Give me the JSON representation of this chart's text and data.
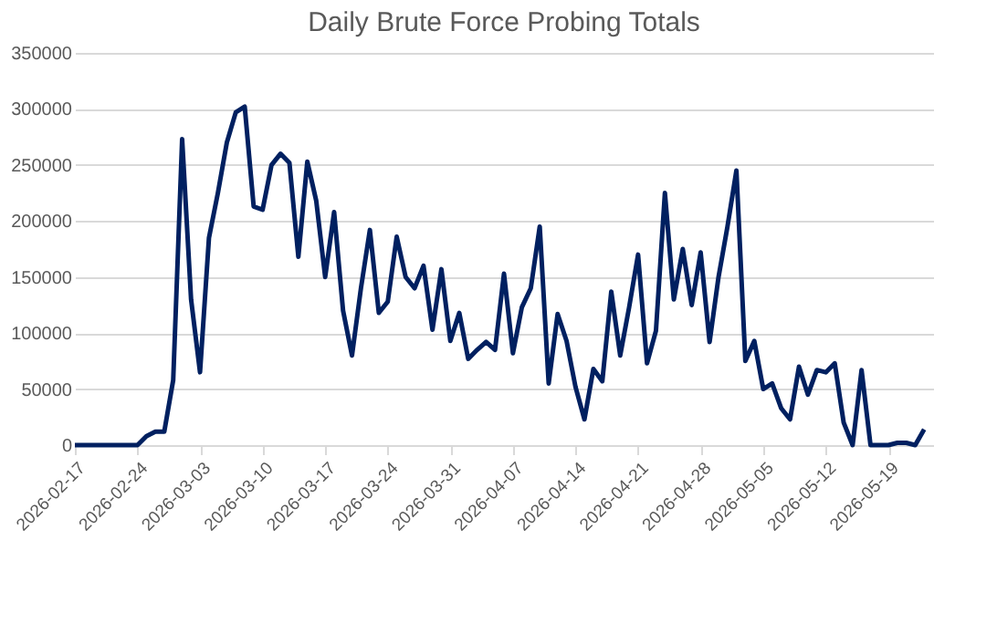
{
  "chart_data": {
    "type": "line",
    "title": "Daily Brute Force Probing Totals",
    "x": [
      "2026-02-17",
      "2026-02-18",
      "2026-02-19",
      "2026-02-20",
      "2026-02-21",
      "2026-02-22",
      "2026-02-23",
      "2026-02-24",
      "2026-02-25",
      "2026-02-26",
      "2026-02-27",
      "2026-02-28",
      "2026-03-01",
      "2026-03-02",
      "2026-03-03",
      "2026-03-04",
      "2026-03-05",
      "2026-03-06",
      "2026-03-07",
      "2026-03-08",
      "2026-03-09",
      "2026-03-10",
      "2026-03-11",
      "2026-03-12",
      "2026-03-13",
      "2026-03-14",
      "2026-03-15",
      "2026-03-16",
      "2026-03-17",
      "2026-03-18",
      "2026-03-19",
      "2026-03-20",
      "2026-03-21",
      "2026-03-22",
      "2026-03-23",
      "2026-03-24",
      "2026-03-25",
      "2026-03-26",
      "2026-03-27",
      "2026-03-28",
      "2026-03-29",
      "2026-03-30",
      "2026-03-31",
      "2026-04-01",
      "2026-04-02",
      "2026-04-03",
      "2026-04-04",
      "2026-04-05",
      "2026-04-06",
      "2026-04-07",
      "2026-04-08",
      "2026-04-09",
      "2026-04-10",
      "2026-04-11",
      "2026-04-12",
      "2026-04-13",
      "2026-04-14",
      "2026-04-15",
      "2026-04-16",
      "2026-04-17",
      "2026-04-18",
      "2026-04-19",
      "2026-04-20",
      "2026-04-21",
      "2026-04-22",
      "2026-04-23",
      "2026-04-24",
      "2026-04-25",
      "2026-04-26",
      "2026-04-27",
      "2026-04-28",
      "2026-04-29",
      "2026-04-30",
      "2026-05-01",
      "2026-05-02",
      "2026-05-03",
      "2026-05-04",
      "2026-05-05",
      "2026-05-06",
      "2026-05-07",
      "2026-05-08",
      "2026-05-09",
      "2026-05-10",
      "2026-05-11",
      "2026-05-12",
      "2026-05-13",
      "2026-05-14",
      "2026-05-15",
      "2026-05-16",
      "2026-05-17",
      "2026-05-18",
      "2026-05-19",
      "2026-05-20",
      "2026-05-21",
      "2026-05-22",
      "2026-05-23"
    ],
    "series": [
      {
        "color": "#002060",
        "values": [
          0,
          0,
          0,
          0,
          0,
          0,
          0,
          0,
          8000,
          12000,
          12000,
          58000,
          273000,
          130000,
          65000,
          185000,
          225000,
          270000,
          297000,
          302000,
          213000,
          210000,
          250000,
          260000,
          252000,
          168000,
          253000,
          218000,
          150000,
          208000,
          120000,
          80000,
          140000,
          192000,
          118000,
          128000,
          186000,
          150000,
          140000,
          160000,
          103000,
          157000,
          93000,
          118000,
          77000,
          85000,
          92000,
          85000,
          153000,
          82000,
          123000,
          140000,
          195000,
          55000,
          117000,
          93000,
          52000,
          23000,
          68000,
          57000,
          137000,
          80000,
          123000,
          170000,
          73000,
          102000,
          225000,
          130000,
          175000,
          125000,
          172000,
          92000,
          150000,
          195000,
          245000,
          75000,
          93000,
          50000,
          55000,
          33000,
          23000,
          70000,
          45000,
          67000,
          65000,
          73000,
          20000,
          0,
          67000,
          0,
          0,
          0,
          2000,
          2000,
          0,
          14000
        ]
      }
    ],
    "xlim": [
      "2026-02-17",
      "2026-05-24"
    ],
    "xticks": [
      "2026-02-17",
      "2026-02-24",
      "2026-03-03",
      "2026-03-10",
      "2026-03-17",
      "2026-03-24",
      "2026-03-31",
      "2026-04-07",
      "2026-04-14",
      "2026-04-21",
      "2026-04-28",
      "2026-05-05",
      "2026-05-12",
      "2026-05-19"
    ],
    "ylim": [
      0,
      350000
    ],
    "yticks": [
      0,
      50000,
      100000,
      150000,
      200000,
      250000,
      300000,
      350000
    ],
    "grid": "y",
    "legend": false,
    "marker": "none",
    "line_style": "solid"
  }
}
